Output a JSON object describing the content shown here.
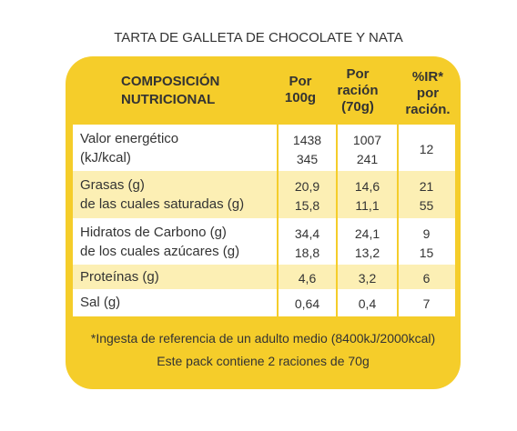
{
  "title": "TARTA DE GALLETA DE CHOCOLATE Y NATA",
  "table": {
    "header": [
      [
        "COMPOSICIÓN",
        "NUTRICIONAL"
      ],
      [
        "Por",
        "100g"
      ],
      [
        "Por",
        "ración",
        "(70g)"
      ],
      [
        "%IR*",
        "por",
        "ración."
      ]
    ],
    "rows": [
      [
        [
          "Valor energético",
          "(kJ/kcal)"
        ],
        [
          "1438",
          "345"
        ],
        [
          "1007",
          "241"
        ],
        [
          "12"
        ]
      ],
      [
        [
          "Grasas (g)",
          "de las cuales saturadas (g)"
        ],
        [
          "20,9",
          "15,8"
        ],
        [
          "14,6",
          "11,1"
        ],
        [
          "21",
          "55"
        ]
      ],
      [
        [
          "Hidratos de Carbono (g)",
          "de los cuales azúcares (g)"
        ],
        [
          "34,4",
          "18,8"
        ],
        [
          "24,1",
          "13,2"
        ],
        [
          "9",
          "15"
        ]
      ],
      [
        [
          "Proteínas (g)"
        ],
        [
          "4,6"
        ],
        [
          "3,2"
        ],
        [
          "6"
        ]
      ],
      [
        [
          "Sal (g)"
        ],
        [
          "0,64"
        ],
        [
          "0,4"
        ],
        [
          "7"
        ]
      ]
    ]
  },
  "footnote": [
    "*Ingesta de referencia de un adulto medio (8400kJ/2000kcal)",
    "Este pack contiene 2 raciones de 70g"
  ]
}
